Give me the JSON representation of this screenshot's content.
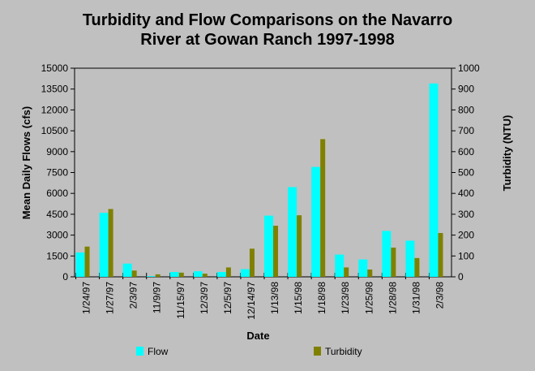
{
  "chart_data": {
    "type": "bar",
    "title_line1": "Turbidity and Flow Comparisons on the Navarro",
    "title_line2": "River at Gowan Ranch 1997-1998",
    "xlabel": "Date",
    "ylabel_left": "Mean Daily Flows (cfs)",
    "ylabel_right": "Turbidity (NTU)",
    "ylim_left": [
      0,
      15000
    ],
    "ylim_right": [
      0,
      1000
    ],
    "yticks_left": [
      "0",
      "1500",
      "3000",
      "4500",
      "6000",
      "7500",
      "9000",
      "10500",
      "12000",
      "13500",
      "15000"
    ],
    "yticks_right": [
      "0",
      "100",
      "200",
      "300",
      "400",
      "500",
      "600",
      "700",
      "800",
      "900",
      "1000"
    ],
    "categories": [
      "1/24/97",
      "1/27/97",
      "2/3/97",
      "11/9/97",
      "11/15/97",
      "12/3/97",
      "12/5/97",
      "12/14/97",
      "1/13/98",
      "1/15/98",
      "1/18/98",
      "1/23/98",
      "1/25/98",
      "1/28/98",
      "1/31/98",
      "2/3/98"
    ],
    "series": [
      {
        "name": "Flow",
        "axis": "left",
        "color": "#00ffff",
        "values": [
          1750,
          4600,
          950,
          50,
          350,
          400,
          350,
          550,
          4400,
          6450,
          7900,
          1600,
          1250,
          3300,
          2600,
          13900
        ]
      },
      {
        "name": "Turbidity",
        "axis": "right",
        "color": "#808000",
        "values": [
          145,
          325,
          30,
          12,
          20,
          15,
          45,
          135,
          245,
          295,
          660,
          45,
          35,
          140,
          90,
          210
        ]
      }
    ],
    "legend_position": "bottom",
    "grid": false
  }
}
